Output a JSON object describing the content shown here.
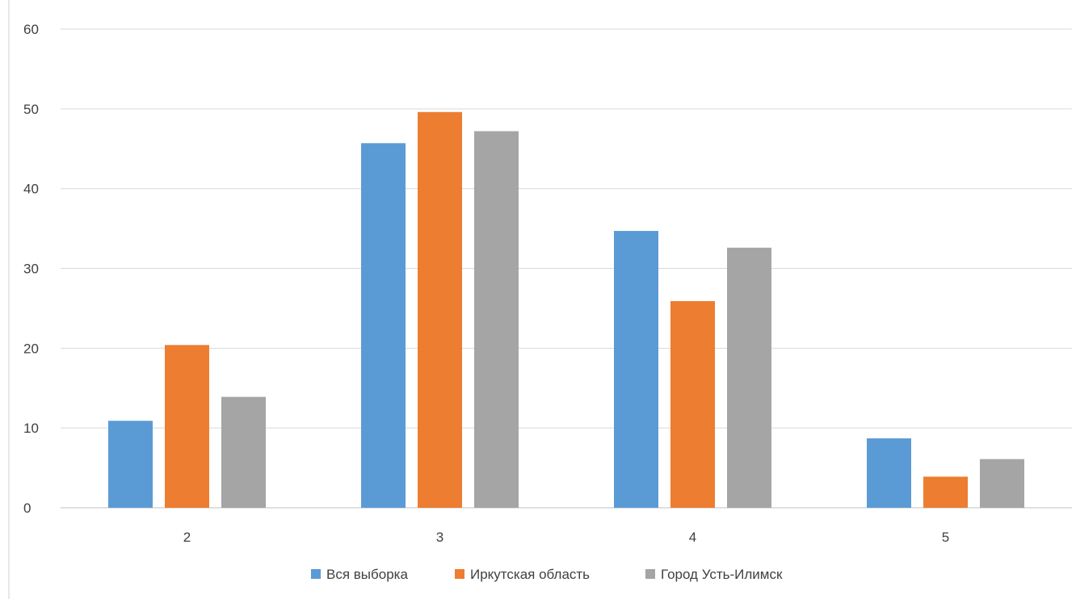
{
  "chart_data": {
    "type": "bar",
    "title": "",
    "xlabel": "",
    "ylabel": "",
    "categories": [
      "2",
      "3",
      "4",
      "5"
    ],
    "ylim": [
      0,
      60
    ],
    "yticks": [
      0,
      10,
      20,
      30,
      40,
      50,
      60
    ],
    "grid": true,
    "legend_position": "bottom",
    "series": [
      {
        "name": "Вся выборка",
        "color": "#5b9bd5",
        "values": [
          10.9,
          45.7,
          34.7,
          8.7
        ]
      },
      {
        "name": "Иркутская область",
        "color": "#ed7d31",
        "values": [
          20.4,
          49.6,
          25.9,
          3.9
        ]
      },
      {
        "name": "Город Усть-Илимск",
        "color": "#a5a5a5",
        "values": [
          13.9,
          47.2,
          32.6,
          6.1
        ]
      }
    ]
  }
}
